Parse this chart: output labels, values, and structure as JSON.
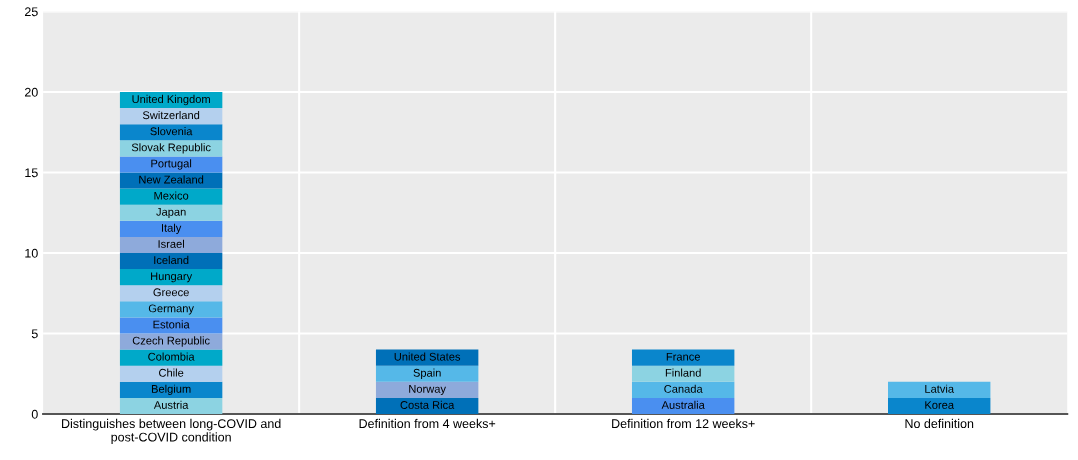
{
  "chart_data": {
    "type": "bar",
    "stacked": true,
    "categories": [
      "Distinguishes between long-COVID and\npost-COVID condition",
      "Definition from 4 weeks+",
      "Definition from 12 weeks+",
      "No definition"
    ],
    "ylim": [
      0,
      25
    ],
    "yticks": [
      0,
      5,
      10,
      15,
      20,
      25
    ],
    "grid": true,
    "legend": false,
    "series": [
      {
        "name": "Austria",
        "color": "#8cd3e2",
        "values": [
          1,
          null,
          null,
          null
        ]
      },
      {
        "name": "Belgium",
        "color": "#0a86cc",
        "values": [
          1,
          null,
          null,
          null
        ]
      },
      {
        "name": "Chile",
        "color": "#b4d0ee",
        "values": [
          1,
          null,
          null,
          null
        ]
      },
      {
        "name": "Colombia",
        "color": "#00a9c9",
        "values": [
          1,
          null,
          null,
          null
        ]
      },
      {
        "name": "Czech Republic",
        "color": "#8eaadb",
        "values": [
          1,
          null,
          null,
          null
        ]
      },
      {
        "name": "Estonia",
        "color": "#4a8ff0",
        "values": [
          1,
          null,
          null,
          null
        ]
      },
      {
        "name": "Germany",
        "color": "#55b8e8",
        "values": [
          1,
          null,
          null,
          null
        ]
      },
      {
        "name": "Greece",
        "color": "#b4d0ee",
        "values": [
          1,
          null,
          null,
          null
        ]
      },
      {
        "name": "Hungary",
        "color": "#00a9c9",
        "values": [
          1,
          null,
          null,
          null
        ]
      },
      {
        "name": "Iceland",
        "color": "#0070b8",
        "values": [
          1,
          null,
          null,
          null
        ]
      },
      {
        "name": "Israel",
        "color": "#8eaadb",
        "values": [
          1,
          null,
          null,
          null
        ]
      },
      {
        "name": "Italy",
        "color": "#4a8ff0",
        "values": [
          1,
          null,
          null,
          null
        ]
      },
      {
        "name": "Japan",
        "color": "#8cd3e2",
        "values": [
          1,
          null,
          null,
          null
        ]
      },
      {
        "name": "Mexico",
        "color": "#00a9c9",
        "values": [
          1,
          null,
          null,
          null
        ]
      },
      {
        "name": "New Zealand",
        "color": "#0070b8",
        "values": [
          1,
          null,
          null,
          null
        ]
      },
      {
        "name": "Portugal",
        "color": "#4a8ff0",
        "values": [
          1,
          null,
          null,
          null
        ]
      },
      {
        "name": "Slovak Republic",
        "color": "#8cd3e2",
        "values": [
          1,
          null,
          null,
          null
        ]
      },
      {
        "name": "Slovenia",
        "color": "#0a86cc",
        "values": [
          1,
          null,
          null,
          null
        ]
      },
      {
        "name": "Switzerland",
        "color": "#b4d0ee",
        "values": [
          1,
          null,
          null,
          null
        ]
      },
      {
        "name": "United Kingdom",
        "color": "#00a9c9",
        "values": [
          1,
          null,
          null,
          null
        ]
      },
      {
        "name": "Costa Rica",
        "color": "#0070b8",
        "values": [
          null,
          1,
          null,
          null
        ]
      },
      {
        "name": "Norway",
        "color": "#8eaadb",
        "values": [
          null,
          1,
          null,
          null
        ]
      },
      {
        "name": "Spain",
        "color": "#55b8e8",
        "values": [
          null,
          1,
          null,
          null
        ]
      },
      {
        "name": "United States",
        "color": "#0070b8",
        "values": [
          null,
          1,
          null,
          null
        ]
      },
      {
        "name": "Australia",
        "color": "#4a8ff0",
        "values": [
          null,
          null,
          1,
          null
        ]
      },
      {
        "name": "Canada",
        "color": "#55b8e8",
        "values": [
          null,
          null,
          1,
          null
        ]
      },
      {
        "name": "Finland",
        "color": "#8cd3e2",
        "values": [
          null,
          null,
          1,
          null
        ]
      },
      {
        "name": "France",
        "color": "#0a86cc",
        "values": [
          null,
          null,
          1,
          null
        ]
      },
      {
        "name": "Korea",
        "color": "#0a86cc",
        "values": [
          null,
          null,
          null,
          1
        ]
      },
      {
        "name": "Latvia",
        "color": "#55b8e8",
        "values": [
          null,
          null,
          null,
          1
        ]
      }
    ]
  }
}
